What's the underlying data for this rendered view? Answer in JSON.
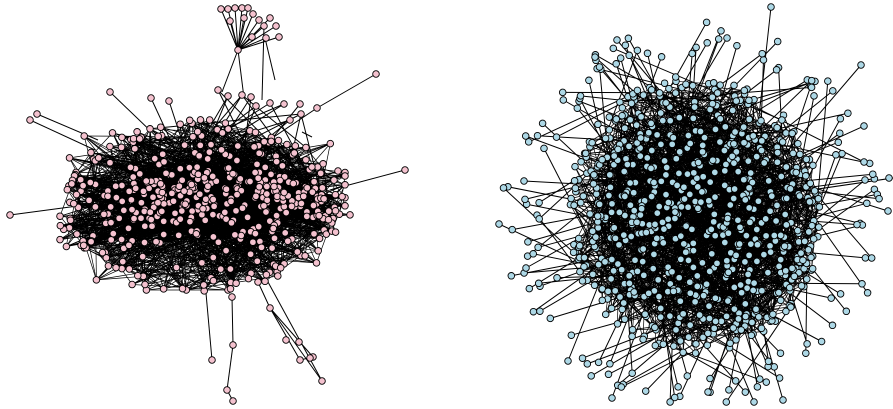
{
  "figure": {
    "panels": [
      {
        "id": "left-network",
        "node_color": "#f4c2cf",
        "edge_color": "#000000",
        "layout_style": "hub-core-with-peripheral-clusters"
      },
      {
        "id": "right-network",
        "node_color": "#add8e6",
        "edge_color": "#000000",
        "layout_style": "dense-core-with-radial-spokes"
      }
    ]
  }
}
